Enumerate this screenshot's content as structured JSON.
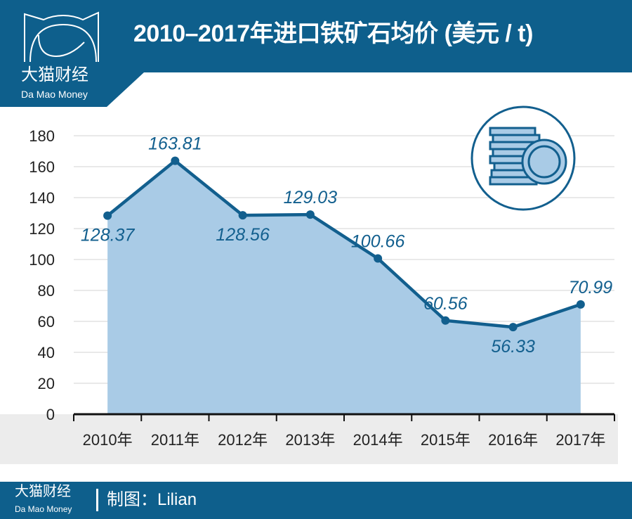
{
  "header": {
    "title": "2010–2017年进口铁矿石均价 (美元 / t)",
    "logo_cn": "大猫财经",
    "logo_en": "Da Mao Money"
  },
  "footer": {
    "logo_cn": "大猫财经",
    "logo_en": "Da Mao Money",
    "credit": "制图：Lilian"
  },
  "colors": {
    "brand": "#0e5f8c",
    "area": "#a9cbe6",
    "line": "#125f8e",
    "band": "#ececec"
  },
  "icon": "coin-stack-icon",
  "chart_data": {
    "type": "area",
    "title": "2010–2017年进口铁矿石均价 (美元 / t)",
    "categories": [
      "2010年",
      "2011年",
      "2012年",
      "2013年",
      "2014年",
      "2015年",
      "2016年",
      "2017年"
    ],
    "values": [
      128.37,
      163.81,
      128.56,
      129.03,
      100.66,
      60.56,
      56.33,
      70.99
    ],
    "labels": [
      "128.37",
      "163.81",
      "128.56",
      "129.03",
      "100.66",
      "60.56",
      "56.33",
      "70.99"
    ],
    "label_side": [
      "below",
      "above",
      "below",
      "above",
      "above",
      "above",
      "below",
      "above"
    ],
    "yticks": [
      "0",
      "20",
      "40",
      "60",
      "80",
      "100",
      "120",
      "140",
      "160",
      "180"
    ],
    "ylim": [
      0,
      180
    ],
    "grid": true,
    "xlabel": "",
    "ylabel": ""
  }
}
